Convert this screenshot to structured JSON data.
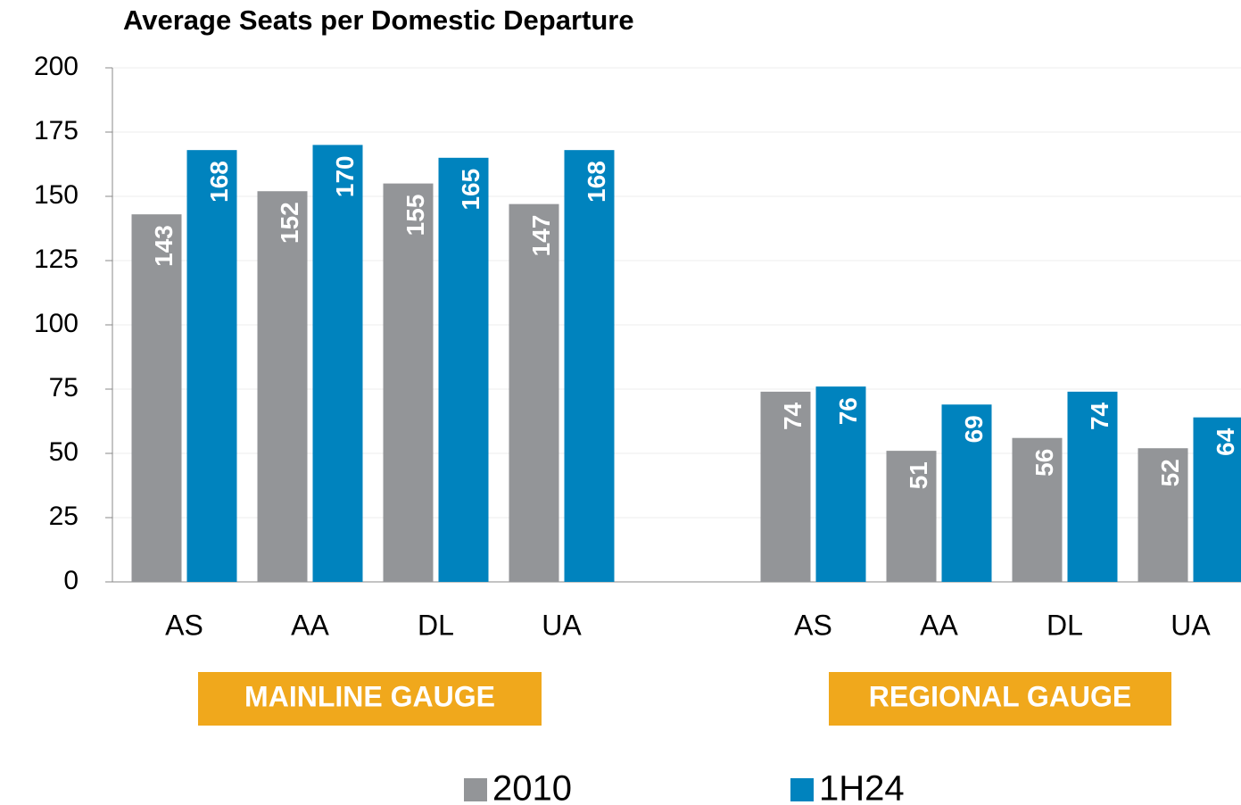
{
  "chart_data": {
    "type": "bar",
    "title": "Average Seats per Domestic Departure",
    "categories": [
      "AS",
      "AA",
      "DL",
      "UA",
      null,
      "AS",
      "AA",
      "DL",
      "UA"
    ],
    "series": [
      {
        "name": "2010",
        "color": "#939598",
        "values": [
          143,
          152,
          155,
          147,
          null,
          74,
          51,
          56,
          52
        ]
      },
      {
        "name": "1H24",
        "color": "#0083be",
        "values": [
          168,
          170,
          165,
          168,
          null,
          76,
          69,
          74,
          64
        ]
      }
    ],
    "group_labels": [
      "MAINLINE GAUGE",
      "REGIONAL GAUGE"
    ],
    "group_label_color": "#f0a81c",
    "ylim": [
      0,
      200
    ],
    "yticks": [
      0,
      25,
      50,
      75,
      100,
      125,
      150,
      175,
      200
    ],
    "grid": true,
    "legend": "bottom"
  }
}
